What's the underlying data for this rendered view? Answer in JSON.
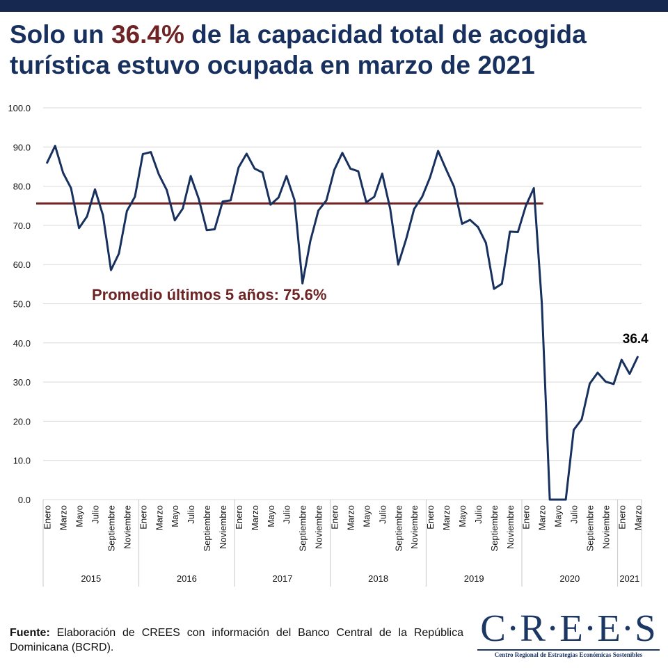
{
  "header": {
    "title_pre": "Solo un ",
    "title_highlight": "36.4%",
    "title_post": " de la capacidad total de acogida turística estuvo ocupada en marzo de 2021"
  },
  "colors": {
    "top_bar": "#16284f",
    "title": "#17305e",
    "highlight": "#6e2424",
    "line": "#17305e",
    "average_line": "#6e2424",
    "grid": "#d9d9d9"
  },
  "chart_data": {
    "type": "line",
    "title": "Solo un 36.4% de la capacidad total de acogida turística estuvo ocupada en marzo de 2021",
    "xlabel": "",
    "ylabel": "",
    "ylim": [
      0,
      100
    ],
    "y_ticks": [
      "0.0",
      "10.0",
      "20.0",
      "30.0",
      "40.0",
      "50.0",
      "60.0",
      "70.0",
      "80.0",
      "90.0",
      "100.0"
    ],
    "grid": true,
    "month_labels": [
      "Enero",
      "Marzo",
      "Mayo",
      "Julio",
      "Septiembre",
      "Noviembre"
    ],
    "years": [
      {
        "label": "2015",
        "months": 12
      },
      {
        "label": "2016",
        "months": 12
      },
      {
        "label": "2017",
        "months": 12
      },
      {
        "label": "2018",
        "months": 12
      },
      {
        "label": "2019",
        "months": 12
      },
      {
        "label": "2020",
        "months": 12
      },
      {
        "label": "2021",
        "months": 3
      }
    ],
    "series": [
      {
        "name": "Tasa de ocupación (%)",
        "values": [
          86.0,
          90.3,
          83.4,
          79.5,
          69.3,
          72.3,
          79.2,
          72.6,
          58.6,
          62.8,
          73.7,
          77.3,
          88.2,
          88.7,
          83.0,
          79.0,
          71.3,
          74.3,
          82.6,
          76.8,
          68.8,
          69.0,
          76.1,
          76.4,
          84.8,
          88.3,
          84.5,
          83.5,
          75.3,
          77.1,
          82.6,
          76.5,
          55.2,
          66.1,
          73.8,
          76.4,
          84.2,
          88.5,
          84.5,
          83.8,
          75.9,
          77.3,
          83.2,
          74.2,
          60.0,
          66.5,
          74.2,
          77.3,
          82.3,
          89.0,
          84.3,
          79.9,
          70.4,
          71.4,
          69.6,
          65.5,
          53.8,
          55.1,
          68.4,
          68.3,
          75.0,
          79.5,
          50.0,
          0.0,
          0.0,
          0.0,
          17.8,
          20.5,
          29.6,
          32.4,
          30.1,
          29.5,
          35.7,
          32.1,
          36.4
        ]
      }
    ],
    "average": {
      "value": 75.6,
      "label": "Promedio últimos 5 años: 75.6%"
    },
    "end_label": "36.4"
  },
  "footer": {
    "source_label": "Fuente:",
    "source_text": " Elaboración de CREES con información del Banco Central de la República Dominicana (BCRD)."
  },
  "logo": {
    "word": "C·R·E·E·S",
    "subtitle": "Centro Regional de Estrategias Económicas Sostenibles"
  }
}
